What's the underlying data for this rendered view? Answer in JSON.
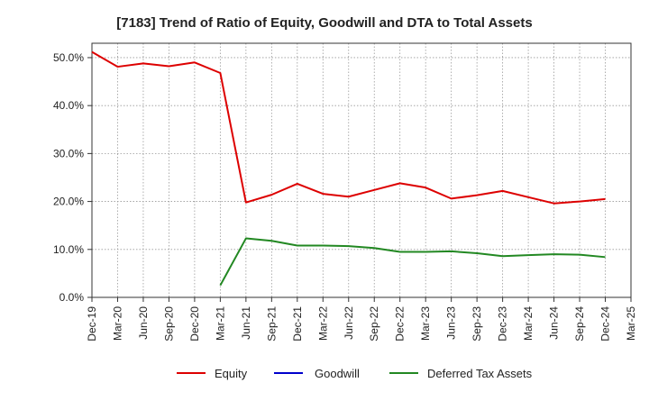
{
  "chart_data": {
    "type": "line",
    "title": "[7183]  Trend of Ratio of Equity, Goodwill and DTA to Total Assets",
    "xlabel": "",
    "ylabel": "",
    "ylim": [
      0,
      53
    ],
    "yticks": [
      0,
      10,
      20,
      30,
      40,
      50
    ],
    "ytick_labels": [
      "0.0%",
      "10.0%",
      "20.0%",
      "30.0%",
      "40.0%",
      "50.0%"
    ],
    "categories": [
      "Dec-19",
      "Mar-20",
      "Jun-20",
      "Sep-20",
      "Dec-20",
      "Mar-21",
      "Jun-21",
      "Sep-21",
      "Dec-21",
      "Mar-22",
      "Jun-22",
      "Sep-22",
      "Dec-22",
      "Mar-23",
      "Jun-23",
      "Sep-23",
      "Dec-23",
      "Mar-24",
      "Jun-24",
      "Sep-24",
      "Dec-24",
      "Mar-25"
    ],
    "grid": true,
    "legend_position": "bottom",
    "series": [
      {
        "name": "Equity",
        "color": "#dd0000",
        "values": [
          51.2,
          48.1,
          48.8,
          48.2,
          49.0,
          46.8,
          19.8,
          21.4,
          23.7,
          21.6,
          21.0,
          22.4,
          23.8,
          22.9,
          20.6,
          21.3,
          22.2,
          20.9,
          19.6,
          20.0,
          20.5,
          null
        ]
      },
      {
        "name": "Goodwill",
        "color": "#0000cc",
        "values": [
          null,
          null,
          null,
          null,
          null,
          null,
          null,
          null,
          null,
          null,
          null,
          null,
          null,
          null,
          null,
          null,
          null,
          null,
          null,
          null,
          null,
          null
        ]
      },
      {
        "name": "Deferred Tax Assets",
        "color": "#228822",
        "values": [
          null,
          null,
          null,
          null,
          null,
          2.5,
          12.3,
          11.8,
          10.8,
          10.8,
          10.7,
          10.3,
          9.5,
          9.5,
          9.6,
          9.2,
          8.6,
          8.8,
          9.0,
          8.9,
          8.4,
          null
        ]
      }
    ]
  }
}
